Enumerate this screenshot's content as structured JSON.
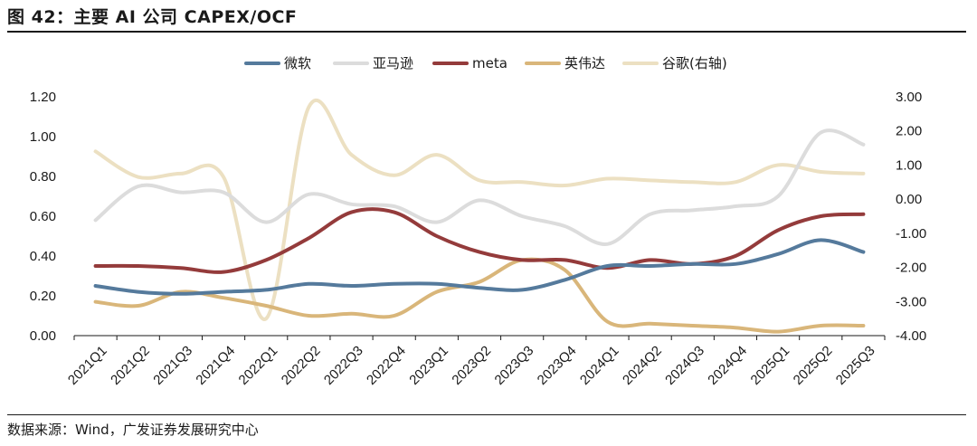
{
  "header": {
    "title": "图 42：主要 AI 公司 CAPEX/OCF"
  },
  "footer": {
    "source": "数据来源：Wind，广发证券发展研究中心"
  },
  "chart_data": {
    "type": "line",
    "categories": [
      "2021Q1",
      "2021Q2",
      "2021Q3",
      "2021Q4",
      "2022Q1",
      "2022Q2",
      "2022Q3",
      "2022Q4",
      "2023Q1",
      "2023Q2",
      "2023Q3",
      "2023Q4",
      "2024Q1",
      "2024Q2",
      "2024Q3",
      "2024Q4",
      "2025Q1",
      "2025Q2",
      "2025Q3"
    ],
    "left_axis": {
      "ylim": [
        0,
        1.2
      ],
      "ticks": [
        "0.00",
        "0.20",
        "0.40",
        "0.60",
        "0.80",
        "1.00",
        "1.20"
      ]
    },
    "right_axis": {
      "ylim": [
        -4,
        3
      ],
      "ticks": [
        "-4.00",
        "-3.00",
        "-2.00",
        "-1.00",
        "0.00",
        "1.00",
        "2.00",
        "3.00"
      ]
    },
    "legend_position": "top",
    "series": [
      {
        "name": "微软",
        "axis": "left",
        "color": "#557a9c",
        "values": [
          0.25,
          0.22,
          0.21,
          0.22,
          0.23,
          0.26,
          0.25,
          0.26,
          0.26,
          0.24,
          0.23,
          0.28,
          0.35,
          0.35,
          0.36,
          0.36,
          0.41,
          0.48,
          0.42
        ]
      },
      {
        "name": "亚马逊",
        "axis": "left",
        "color": "#dcdcdc",
        "values": [
          0.58,
          0.75,
          0.72,
          0.72,
          0.57,
          0.71,
          0.66,
          0.65,
          0.57,
          0.68,
          0.6,
          0.55,
          0.46,
          0.61,
          0.63,
          0.65,
          0.7,
          1.02,
          0.96
        ]
      },
      {
        "name": "meta",
        "axis": "left",
        "color": "#943b3b",
        "values": [
          0.35,
          0.35,
          0.34,
          0.32,
          0.38,
          0.49,
          0.62,
          0.62,
          0.5,
          0.42,
          0.38,
          0.38,
          0.34,
          0.38,
          0.36,
          0.4,
          0.53,
          0.6,
          0.61
        ]
      },
      {
        "name": "英伟达",
        "axis": "left",
        "color": "#d9b67a",
        "values": [
          0.17,
          0.15,
          0.22,
          0.19,
          0.15,
          0.1,
          0.11,
          0.1,
          0.22,
          0.27,
          0.38,
          0.33,
          0.07,
          0.06,
          0.05,
          0.04,
          0.02,
          0.05,
          0.05
        ]
      },
      {
        "name": "谷歌(右轴)",
        "axis": "right",
        "color": "#ece0c2",
        "values": [
          1.4,
          0.65,
          0.75,
          0.65,
          -3.5,
          2.7,
          1.3,
          0.7,
          1.3,
          0.55,
          0.5,
          0.4,
          0.6,
          0.55,
          0.5,
          0.5,
          1.0,
          0.8,
          0.75
        ]
      }
    ]
  }
}
